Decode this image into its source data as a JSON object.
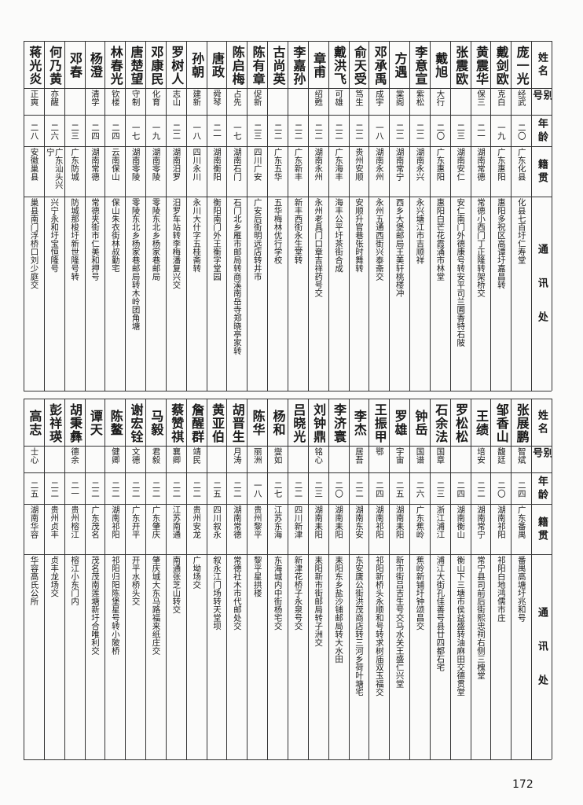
{
  "tables": [
    {
      "header": [
        "姓名",
        "别号",
        "年龄",
        "籍贯",
        "通讯处"
      ],
      "rows": [
        [
          "庞一光",
          "经武",
          "二〇",
          "广东化县",
          "化县七百圩仁寿堂"
        ],
        [
          "戴剑欧",
          "克白",
          "一九",
          "广东惠阳",
          "惠阳多祝区高谭圩嘉昌转"
        ],
        [
          "黄震华",
          "保三",
          "二一",
          "湖南常德",
          "常德小西门丁正隆转架桥交"
        ],
        [
          "张震欧",
          null,
          "二三",
          "湖南安仁",
          "安仁南门外德康号转安平司兰圃香特石陂"
        ],
        [
          "戴旭",
          "大行",
          "二〇",
          "广东惠阳",
          "惠阳白芒花霞涌市林堂"
        ],
        [
          "李意宣",
          "紫松",
          "二二",
          "湖南永兴",
          "永兴塘江市吉顺祥"
        ],
        [
          "方遇",
          "棠阁",
          "二二",
          "湖南常宁",
          "西乡大堡邮局王美轩桃楼冲"
        ],
        [
          "邓承禹",
          "成宇",
          "一八",
          "湖南永州",
          "永州五通西街兴泰斋交"
        ],
        [
          "俞天受",
          "笃生",
          "二二",
          "贵州安顺",
          "安顺升官巷张时舞转"
        ],
        [
          "戴洪飞",
          "可雄",
          "二二",
          "广东海丰",
          "海丰公平圩茶街合成"
        ],
        [
          "章甫",
          "绍甦",
          "二二",
          "湖南永州",
          "永州老具门口章吉祥药号交"
        ],
        [
          "李嘉孙",
          null,
          "二二",
          "广东新丰",
          "新丰西街永生堂转"
        ],
        [
          "古尚英",
          null,
          "二二",
          "广东五华",
          "五华梅林优行学校"
        ],
        [
          "陈有章",
          "促新",
          "二三",
          "四川广安",
          "广安后街明远店转井市"
        ],
        [
          "陈启梅",
          "占先",
          "一七",
          "湖南石门",
          "石门北乡雁市邮局转商溪南岳寺郑晓亭家转"
        ],
        [
          "唐政",
          "舜琴",
          "二一",
          "湖南衡阳",
          "衡阳南门外王衡字堂园"
        ],
        [
          "孙朝",
          "建新",
          "一八",
          "四川永川",
          "永川大什字五桂斋转"
        ],
        [
          "罗树人",
          "志山",
          "二二",
          "湖南汨罗",
          "汨罗车站转李梅潘复兴交"
        ],
        [
          "邓康民",
          "化育",
          "一九",
          "湖南零陵",
          "零陵东北乡杨家巷邮局"
        ],
        [
          "唐楚望",
          "守制",
          "一七",
          "湖南零陵",
          "零陵东北乡杨家巷邮局转木岭团角塘"
        ],
        [
          "林春光",
          "钦楼",
          "二四",
          "云南保山",
          "保山朱衣街林叔勤宅"
        ],
        [
          "杨澄",
          "清学",
          "二四",
          "湖南常德",
          "常德夹街市仁美和押号"
        ],
        [
          "邓春",
          null,
          "二三",
          "广东防城",
          "防城那梭圩新世隆号转"
        ],
        [
          "何乃黄",
          "亦醒",
          "二六",
          "广东汕头兴宁",
          "兴宁永和圩宝恒隆号"
        ],
        [
          "蒋光炎",
          "正爽",
          "二八",
          "安徽巢县",
          "巢县南门浮桥口刘少庭交"
        ]
      ]
    },
    {
      "header": [
        "姓名",
        "别号",
        "年龄",
        "籍贯",
        "通讯处"
      ],
      "rows": [
        [
          "张展鹏",
          "智斌",
          "二四",
          "广东番禺",
          "番禺高塘圩兆和号"
        ],
        [
          "邹香山",
          "馥廷",
          "二〇",
          "湖南祁阳",
          "祁阳白地鸿儒市庄"
        ],
        [
          "王绩",
          "培安",
          "二二",
          "湖南常宁",
          "常宁县司前后街熙忠祠右侧三槐堂"
        ],
        [
          "罗松松",
          null,
          "二四",
          "湖南衡山",
          "衡山下三塘市侯益盛转油麻田交德贯堂"
        ],
        [
          "石余法",
          "国章",
          "二三",
          "浙江浦江",
          "浦江大街孔佳善号县廿四都石宅"
        ],
        [
          "钟岳",
          "国谱",
          "二六",
          "广东蕉岭",
          "蕉岭新铺圩钟颂昌交"
        ],
        [
          "罗雄",
          "宇宙",
          "二五",
          "湖南耒阳",
          "新市街吕吉生号交马水关王盛仁兴堂"
        ],
        [
          "王振甲",
          "鄂",
          "二四",
          "湖南祁阳",
          "祁阳新桥头永顺和号转求树庙双玉福交"
        ],
        [
          "李杰",
          "居吾",
          "二二",
          "湖南东安",
          "东安唐公街洪茂商店转三河乡荷叶塘宅"
        ],
        [
          "李济寰",
          null,
          "二〇",
          "湖南耒阳",
          "耒阳东乡盐沙铺邮局转大水田"
        ],
        [
          "刘钟鼎",
          "铭心",
          "二三",
          "湖南耒阳",
          "耒阳新市街邮局转子洲交"
        ],
        [
          "吕晓光",
          null,
          "二二",
          "四川新津",
          "新津花桥子永泉号交"
        ],
        [
          "杨和",
          "燮如",
          "二七",
          "江苏东海",
          "东海城内中街杨宅交"
        ],
        [
          "陈华",
          "丽洲",
          "一八",
          "贵州黎平",
          "黎平星拱楼"
        ],
        [
          "胡晋生",
          "月涛",
          "二二",
          "湖南常德",
          "常德社木市代邮处交"
        ],
        [
          "黄亚伯",
          null,
          "二五",
          "四川叙永",
          "叙永江门场转天堂坝"
        ],
        [
          "詹醒群",
          "靖民",
          "二二",
          "贵州安龙",
          "广坳场交"
        ],
        [
          "蔡赞祺",
          "襄卿",
          "二二",
          "江苏南通",
          "南通张芝山转交"
        ],
        [
          "马毅",
          "君毅",
          "二二",
          "广东肇庆",
          "肇庆城大东马路福来纸庄交"
        ],
        [
          "谢宏铨",
          "文德",
          "二二",
          "广东开平",
          "开平水桥头交"
        ],
        [
          "陈鳌",
          "健卿",
          "二二",
          "湖南祁阳",
          "祁阳归阳陈堡星号转小陂桥"
        ],
        [
          "谭天",
          null,
          "二二",
          "广东茂名",
          "茂名茂南莲塘新圩合唯利交"
        ],
        [
          "胡秉彝",
          "德余",
          "二一",
          "贵州榕江",
          "榕江小东门内"
        ],
        [
          "彭祥瑛",
          null,
          "二二",
          "贵州贞丰",
          "贞丰龙场交"
        ],
        [
          "高志",
          "士心",
          "二五",
          "湖南华容",
          "华容高氏公所"
        ]
      ]
    }
  ],
  "page_number": "172"
}
